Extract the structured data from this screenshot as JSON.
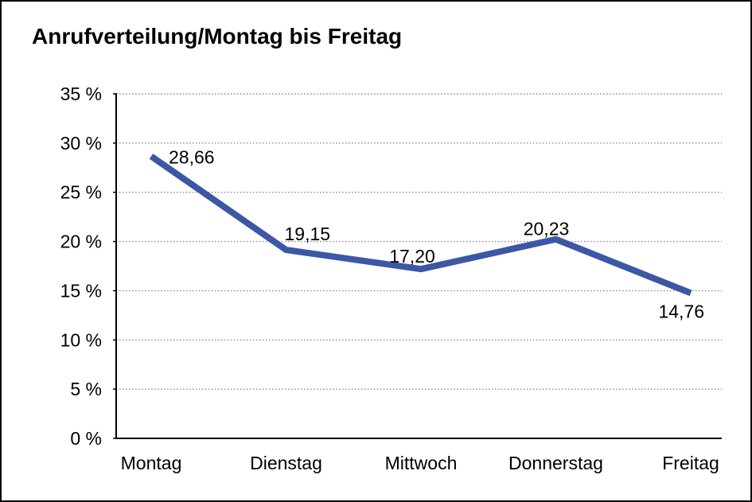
{
  "title": "Anrufverteilung/Montag bis Freitag",
  "chart_data": {
    "type": "line",
    "title": "Anrufverteilung/Montag bis Freitag",
    "categories": [
      "Montag",
      "Dienstag",
      "Mittwoch",
      "Donnerstag",
      "Freitag"
    ],
    "values": [
      28.66,
      19.15,
      17.2,
      20.23,
      14.76
    ],
    "value_labels": [
      "28,66",
      "19,15",
      "17,20",
      "20,23",
      "14,76"
    ],
    "xlabel": "",
    "ylabel": "",
    "ylim": [
      0,
      35
    ],
    "ytick_step": 5,
    "ytick_labels": [
      "0 %",
      "5 %",
      "10 %",
      "15 %",
      "20 %",
      "25 %",
      "30 %",
      "35 %"
    ],
    "grid": "horizontal-dotted",
    "legend": "none",
    "line_color": "#3B57A5",
    "grid_color": "#8C8C8C",
    "axis_color": "#000000",
    "text_color": "#000000",
    "background_color": "#FFFFFF",
    "border_color": "#000000"
  }
}
